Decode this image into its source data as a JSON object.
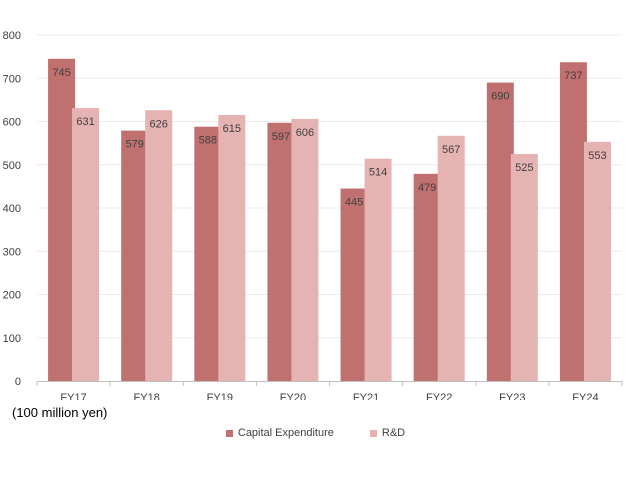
{
  "chart_data": {
    "type": "bar",
    "unit_label": "(100 million yen)",
    "categories": [
      "FY17",
      "FY18",
      "FY19",
      "FY20",
      "FY21",
      "FY22",
      "FY23",
      "FY24"
    ],
    "series": [
      {
        "name": "Capital Expenditure",
        "color": "#c0706f",
        "values": [
          745,
          579,
          588,
          597,
          445,
          479,
          690,
          737
        ]
      },
      {
        "name": "R&D",
        "color": "#e6b3b3",
        "values": [
          631,
          626,
          615,
          606,
          514,
          567,
          525,
          553
        ]
      }
    ],
    "ylim": [
      0,
      800
    ],
    "yticks": [
      0,
      100,
      200,
      300,
      400,
      500,
      600,
      700,
      800
    ],
    "grid": true,
    "legend": "bottom"
  }
}
